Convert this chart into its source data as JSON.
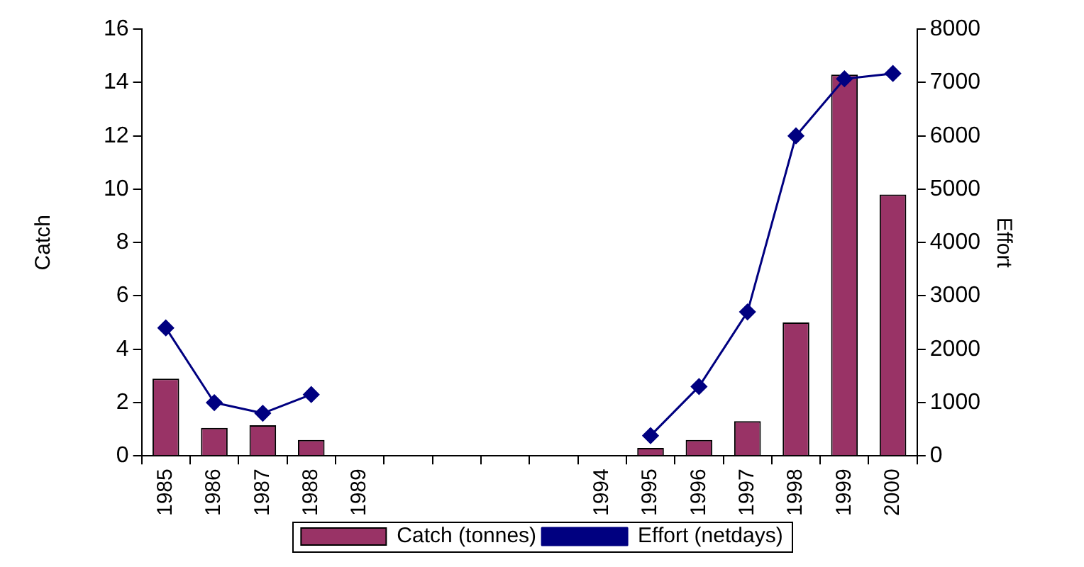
{
  "chart_data": {
    "type": "bar",
    "xlabel": null,
    "ylabel": "Catch",
    "y2label": "Effort",
    "categories": [
      "1985",
      "1986",
      "1987",
      "1988",
      "1989",
      null,
      null,
      null,
      null,
      "1994",
      "1995",
      "1996",
      "1997",
      "1998",
      "1999",
      "2000"
    ],
    "series": [
      {
        "name": "Catch (tonnes)",
        "color": "#993366",
        "values": [
          2.9,
          1.05,
          1.15,
          0.6,
          null,
          null,
          null,
          null,
          null,
          null,
          0.3,
          0.6,
          1.3,
          5.0,
          14.3,
          9.8
        ]
      },
      {
        "name": "Effort (netdays)",
        "type": "line",
        "axis": "y2",
        "color": "#000080",
        "marker": "diamond",
        "values": [
          2400,
          1000,
          800,
          1150,
          null,
          null,
          null,
          null,
          null,
          null,
          380,
          1300,
          2700,
          6000,
          7070,
          7170
        ]
      }
    ],
    "ylim": [
      0,
      16
    ],
    "yticks": [
      0,
      2,
      4,
      6,
      8,
      10,
      12,
      14,
      16
    ],
    "y2lim": [
      0,
      8000
    ],
    "y2ticks": [
      0,
      1000,
      2000,
      3000,
      4000,
      5000,
      6000,
      7000,
      8000
    ],
    "grid": false,
    "legend": "bottom"
  }
}
